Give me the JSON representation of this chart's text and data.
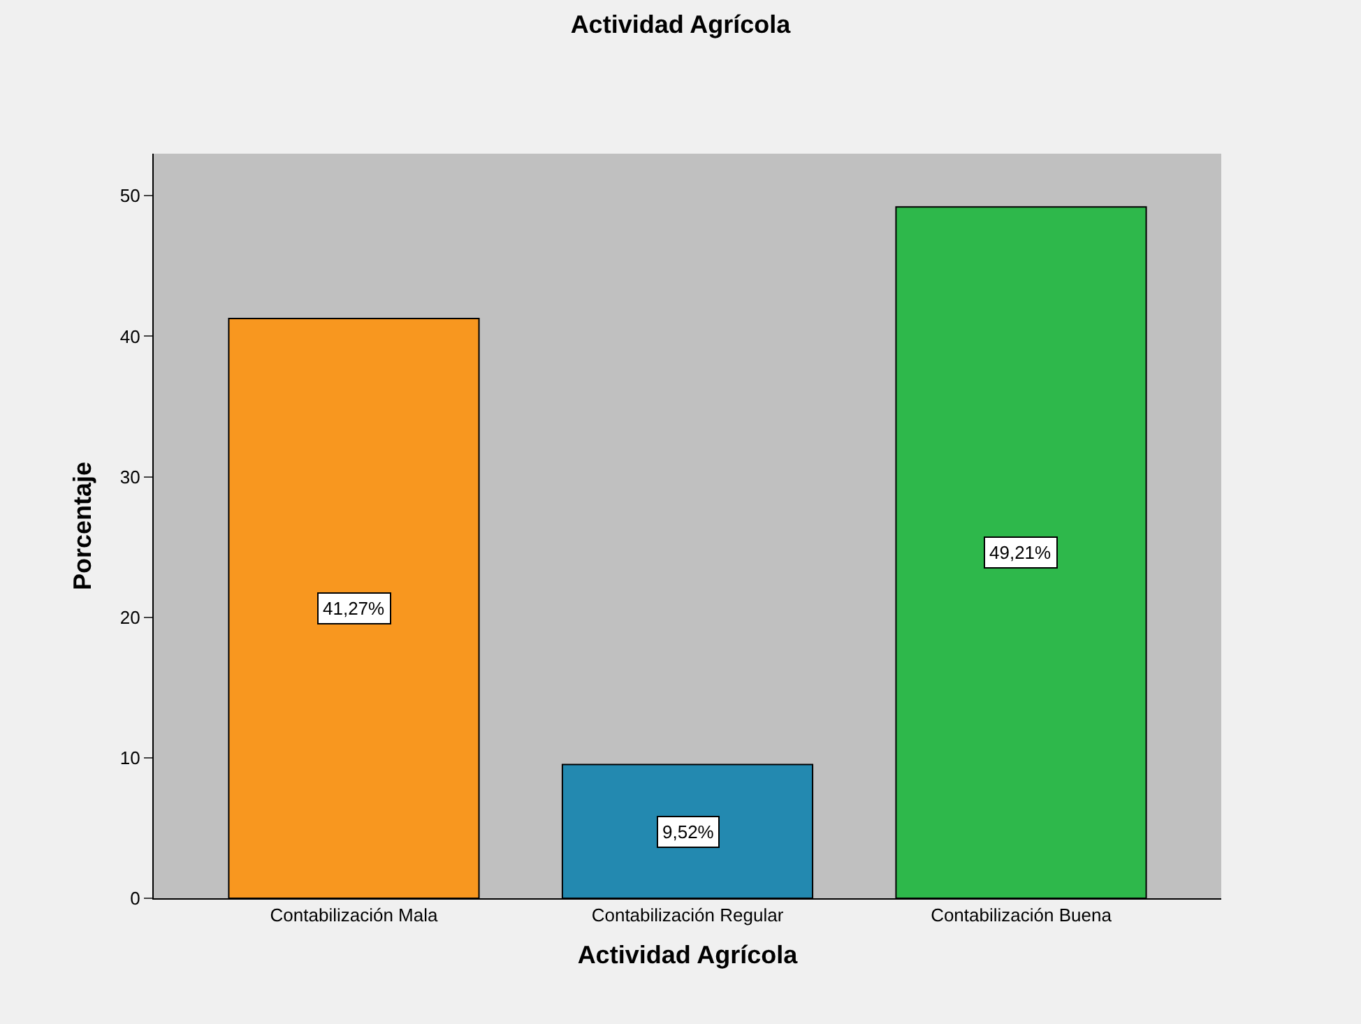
{
  "chart_data": {
    "type": "bar",
    "title": "Actividad Agrícola",
    "xlabel": "Actividad Agrícola",
    "ylabel": "Porcentaje",
    "categories": [
      "Contabilización Mala",
      "Contabilización Regular",
      "Contabilización Buena"
    ],
    "values": [
      41.27,
      9.52,
      49.21
    ],
    "colors": [
      "#f8971f",
      "#2389b0",
      "#2eb84b"
    ],
    "value_labels": [
      "41,27%",
      "9,52%",
      "49,21%"
    ],
    "ylim": [
      0,
      53
    ],
    "yticks": [
      0,
      10,
      20,
      30,
      40,
      50
    ],
    "grid": false,
    "legend": false
  }
}
